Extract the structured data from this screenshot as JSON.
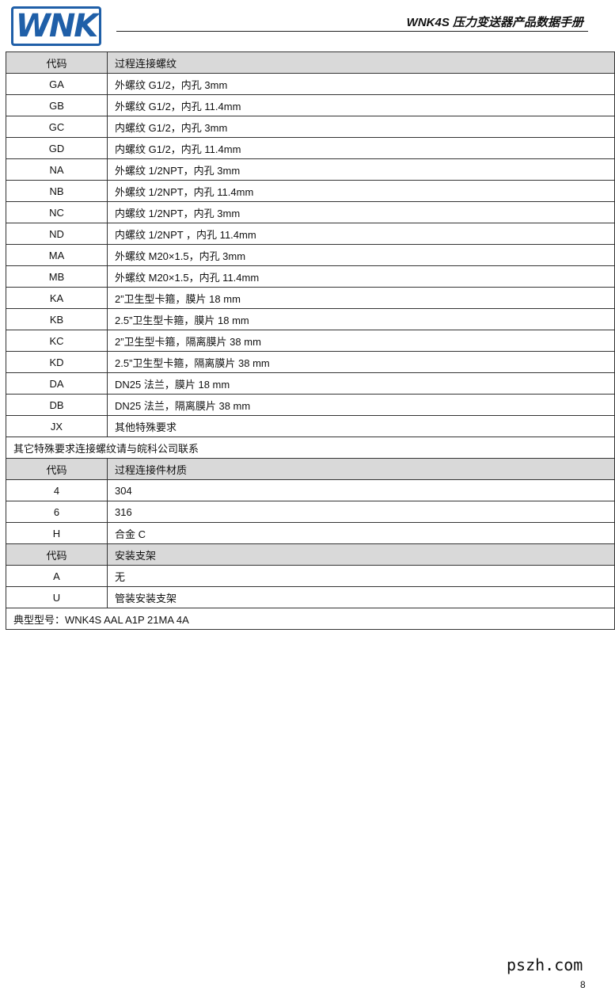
{
  "header": {
    "logo_text": "WNK",
    "title": "WNK4S 压力变送器产品数据手册"
  },
  "table1": {
    "header": [
      "代码",
      "过程连接螺纹"
    ],
    "rows": [
      [
        "GA",
        "外螺纹 G1/2，内孔 3mm"
      ],
      [
        "GB",
        "外螺纹 G1/2，内孔 11.4mm"
      ],
      [
        "GC",
        "内螺纹 G1/2，内孔 3mm"
      ],
      [
        "GD",
        "内螺纹 G1/2，内孔 11.4mm"
      ],
      [
        "NA",
        "外螺纹 1/2NPT，内孔 3mm"
      ],
      [
        "NB",
        "外螺纹 1/2NPT，内孔 11.4mm"
      ],
      [
        "NC",
        "内螺纹 1/2NPT，内孔 3mm"
      ],
      [
        "ND",
        "内螺纹  1/2NPT ，内孔 11.4mm"
      ],
      [
        "MA",
        "外螺纹  M20×1.5，内孔 3mm"
      ],
      [
        "MB",
        "外螺纹  M20×1.5，内孔 11.4mm"
      ],
      [
        "KA",
        "2”卫生型卡箍，膜片 18 mm"
      ],
      [
        "KB",
        "2.5”卫生型卡箍，膜片 18 mm"
      ],
      [
        "KC",
        "2”卫生型卡箍，隔离膜片 38 mm"
      ],
      [
        "KD",
        "2.5”卫生型卡箍，隔离膜片 38 mm"
      ],
      [
        "DA",
        "DN25 法兰，膜片 18 mm"
      ],
      [
        "DB",
        "DN25 法兰，隔离膜片 38 mm"
      ],
      [
        "JX",
        "其他特殊要求"
      ]
    ],
    "note": "其它特殊要求连接螺纹请与皖科公司联系"
  },
  "table2": {
    "header": [
      "代码",
      "过程连接件材质"
    ],
    "rows": [
      [
        "4",
        "304"
      ],
      [
        "6",
        "316"
      ],
      [
        "H",
        "合金 C"
      ]
    ]
  },
  "table3": {
    "header": [
      "代码",
      "安装支架"
    ],
    "rows": [
      [
        "A",
        "无"
      ],
      [
        "U",
        "管装安装支架"
      ]
    ]
  },
  "footer_note": "典型型号：WNK4S AAL A1P 21MA 4A",
  "watermark": "pszh.com",
  "page_number": "8"
}
